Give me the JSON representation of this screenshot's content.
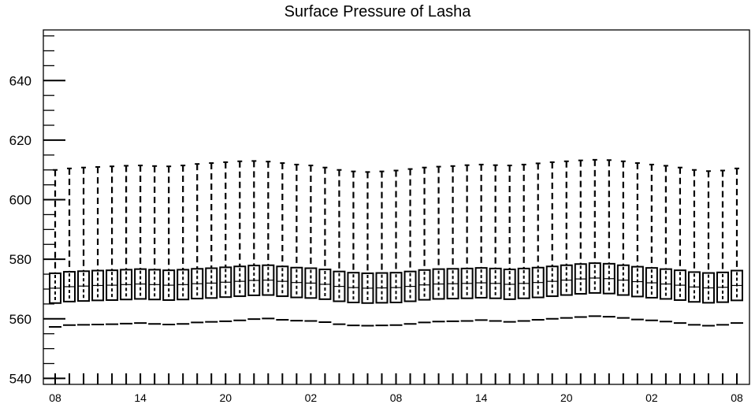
{
  "chart_data": {
    "type": "box",
    "title": "Surface Pressure of Lasha",
    "xlabel": "",
    "ylabel": "",
    "ylim": [
      538,
      657
    ],
    "yticks": [
      540,
      560,
      580,
      600,
      620,
      640
    ],
    "x_tick_labels": [
      "08",
      "14",
      "20",
      "02",
      "08",
      "14",
      "20",
      "02",
      "08"
    ],
    "x_tick_every": 6,
    "n_boxes": 49,
    "grid": false,
    "box_stats": {
      "upper_whisker": [
        610,
        610.5,
        610.8,
        611.0,
        611.2,
        611.4,
        611.5,
        611.3,
        611.2,
        611.5,
        612.0,
        612.3,
        612.6,
        612.9,
        613.0,
        612.8,
        612.3,
        611.8,
        611.5,
        610.8,
        610.0,
        609.5,
        609.3,
        609.5,
        609.8,
        610.3,
        610.8,
        611.1,
        611.3,
        611.6,
        611.8,
        611.6,
        611.5,
        611.8,
        612.2,
        612.6,
        612.9,
        613.2,
        613.4,
        613.3,
        612.9,
        612.3,
        611.8,
        611.4,
        610.8,
        610.0,
        609.6,
        609.8,
        610.5
      ],
      "q3": [
        575.3,
        575.8,
        576.0,
        576.2,
        576.3,
        576.5,
        576.7,
        576.5,
        576.3,
        576.5,
        576.8,
        577.0,
        577.3,
        577.6,
        577.9,
        578.0,
        577.6,
        577.2,
        577.0,
        576.6,
        575.9,
        575.5,
        575.3,
        575.4,
        575.5,
        575.9,
        576.4,
        576.7,
        576.8,
        576.9,
        577.1,
        576.9,
        576.6,
        576.9,
        577.2,
        577.6,
        578.0,
        578.4,
        578.7,
        578.5,
        578.0,
        577.5,
        577.1,
        576.7,
        576.3,
        575.7,
        575.4,
        575.6,
        576.2
      ],
      "median": [
        570.3,
        570.8,
        571.0,
        571.2,
        571.3,
        571.5,
        571.7,
        571.5,
        571.3,
        571.5,
        571.8,
        572.0,
        572.3,
        572.6,
        572.9,
        573.0,
        572.6,
        572.2,
        572.0,
        571.6,
        570.9,
        570.5,
        570.3,
        570.4,
        570.5,
        570.9,
        571.4,
        571.7,
        571.8,
        571.9,
        572.1,
        571.9,
        571.6,
        571.9,
        572.2,
        572.6,
        573.0,
        573.4,
        573.7,
        573.5,
        573.0,
        572.5,
        572.1,
        571.7,
        571.3,
        570.7,
        570.4,
        570.6,
        571.2
      ],
      "q1": [
        565.3,
        565.8,
        566.0,
        566.2,
        566.3,
        566.5,
        566.7,
        566.5,
        566.3,
        566.5,
        566.8,
        567.0,
        567.3,
        567.6,
        567.9,
        568.0,
        567.6,
        567.2,
        567.0,
        566.6,
        565.9,
        565.5,
        565.3,
        565.4,
        565.5,
        565.9,
        566.4,
        566.7,
        566.8,
        566.9,
        567.1,
        566.9,
        566.6,
        566.9,
        567.2,
        567.6,
        568.0,
        568.4,
        568.7,
        568.5,
        568.0,
        567.5,
        567.1,
        566.7,
        566.3,
        565.7,
        565.4,
        565.6,
        566.2
      ],
      "lower_whisker": [
        557.3,
        557.9,
        558.0,
        558.1,
        558.2,
        558.4,
        558.6,
        558.3,
        558.1,
        558.3,
        558.8,
        559.0,
        559.2,
        559.5,
        559.9,
        560.1,
        559.7,
        559.4,
        559.3,
        558.9,
        558.2,
        557.8,
        557.7,
        557.8,
        557.9,
        558.3,
        558.8,
        559.1,
        559.2,
        559.3,
        559.6,
        559.3,
        559.0,
        559.3,
        559.7,
        560.0,
        560.3,
        560.6,
        560.9,
        560.7,
        560.3,
        559.8,
        559.5,
        559.1,
        558.6,
        558.0,
        557.7,
        558.0,
        558.6
      ]
    }
  }
}
